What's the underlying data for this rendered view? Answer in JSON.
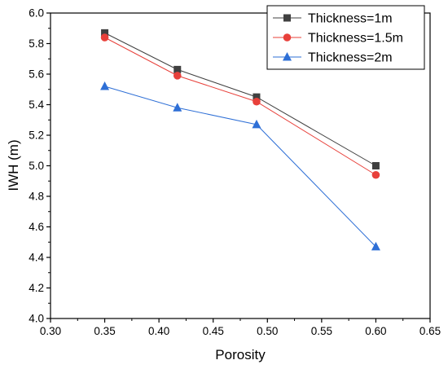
{
  "chart_data": {
    "type": "line",
    "xlabel": "Porosity",
    "ylabel": "IWH (m)",
    "xlim": [
      0.3,
      0.65
    ],
    "ylim": [
      4.0,
      6.0
    ],
    "x_ticks": [
      "0.30",
      "0.35",
      "0.40",
      "0.45",
      "0.50",
      "0.55",
      "0.60",
      "0.65"
    ],
    "y_ticks": [
      "4.0",
      "4.2",
      "4.4",
      "4.6",
      "4.8",
      "5.0",
      "5.2",
      "5.4",
      "5.6",
      "5.8",
      "6.0"
    ],
    "x": [
      0.35,
      0.417,
      0.49,
      0.6
    ],
    "grid": false,
    "legend_position": "top-right",
    "series": [
      {
        "name": "Thickness=1m",
        "marker": "square",
        "color": "#404040",
        "values": [
          5.87,
          5.63,
          5.45,
          5.0
        ]
      },
      {
        "name": "Thickness=1.5m",
        "marker": "circle",
        "color": "#e8403a",
        "values": [
          5.84,
          5.59,
          5.42,
          4.94
        ]
      },
      {
        "name": "Thickness=2m",
        "marker": "triangle",
        "color": "#2e6fd6",
        "values": [
          5.52,
          5.38,
          5.27,
          4.47
        ]
      }
    ]
  }
}
